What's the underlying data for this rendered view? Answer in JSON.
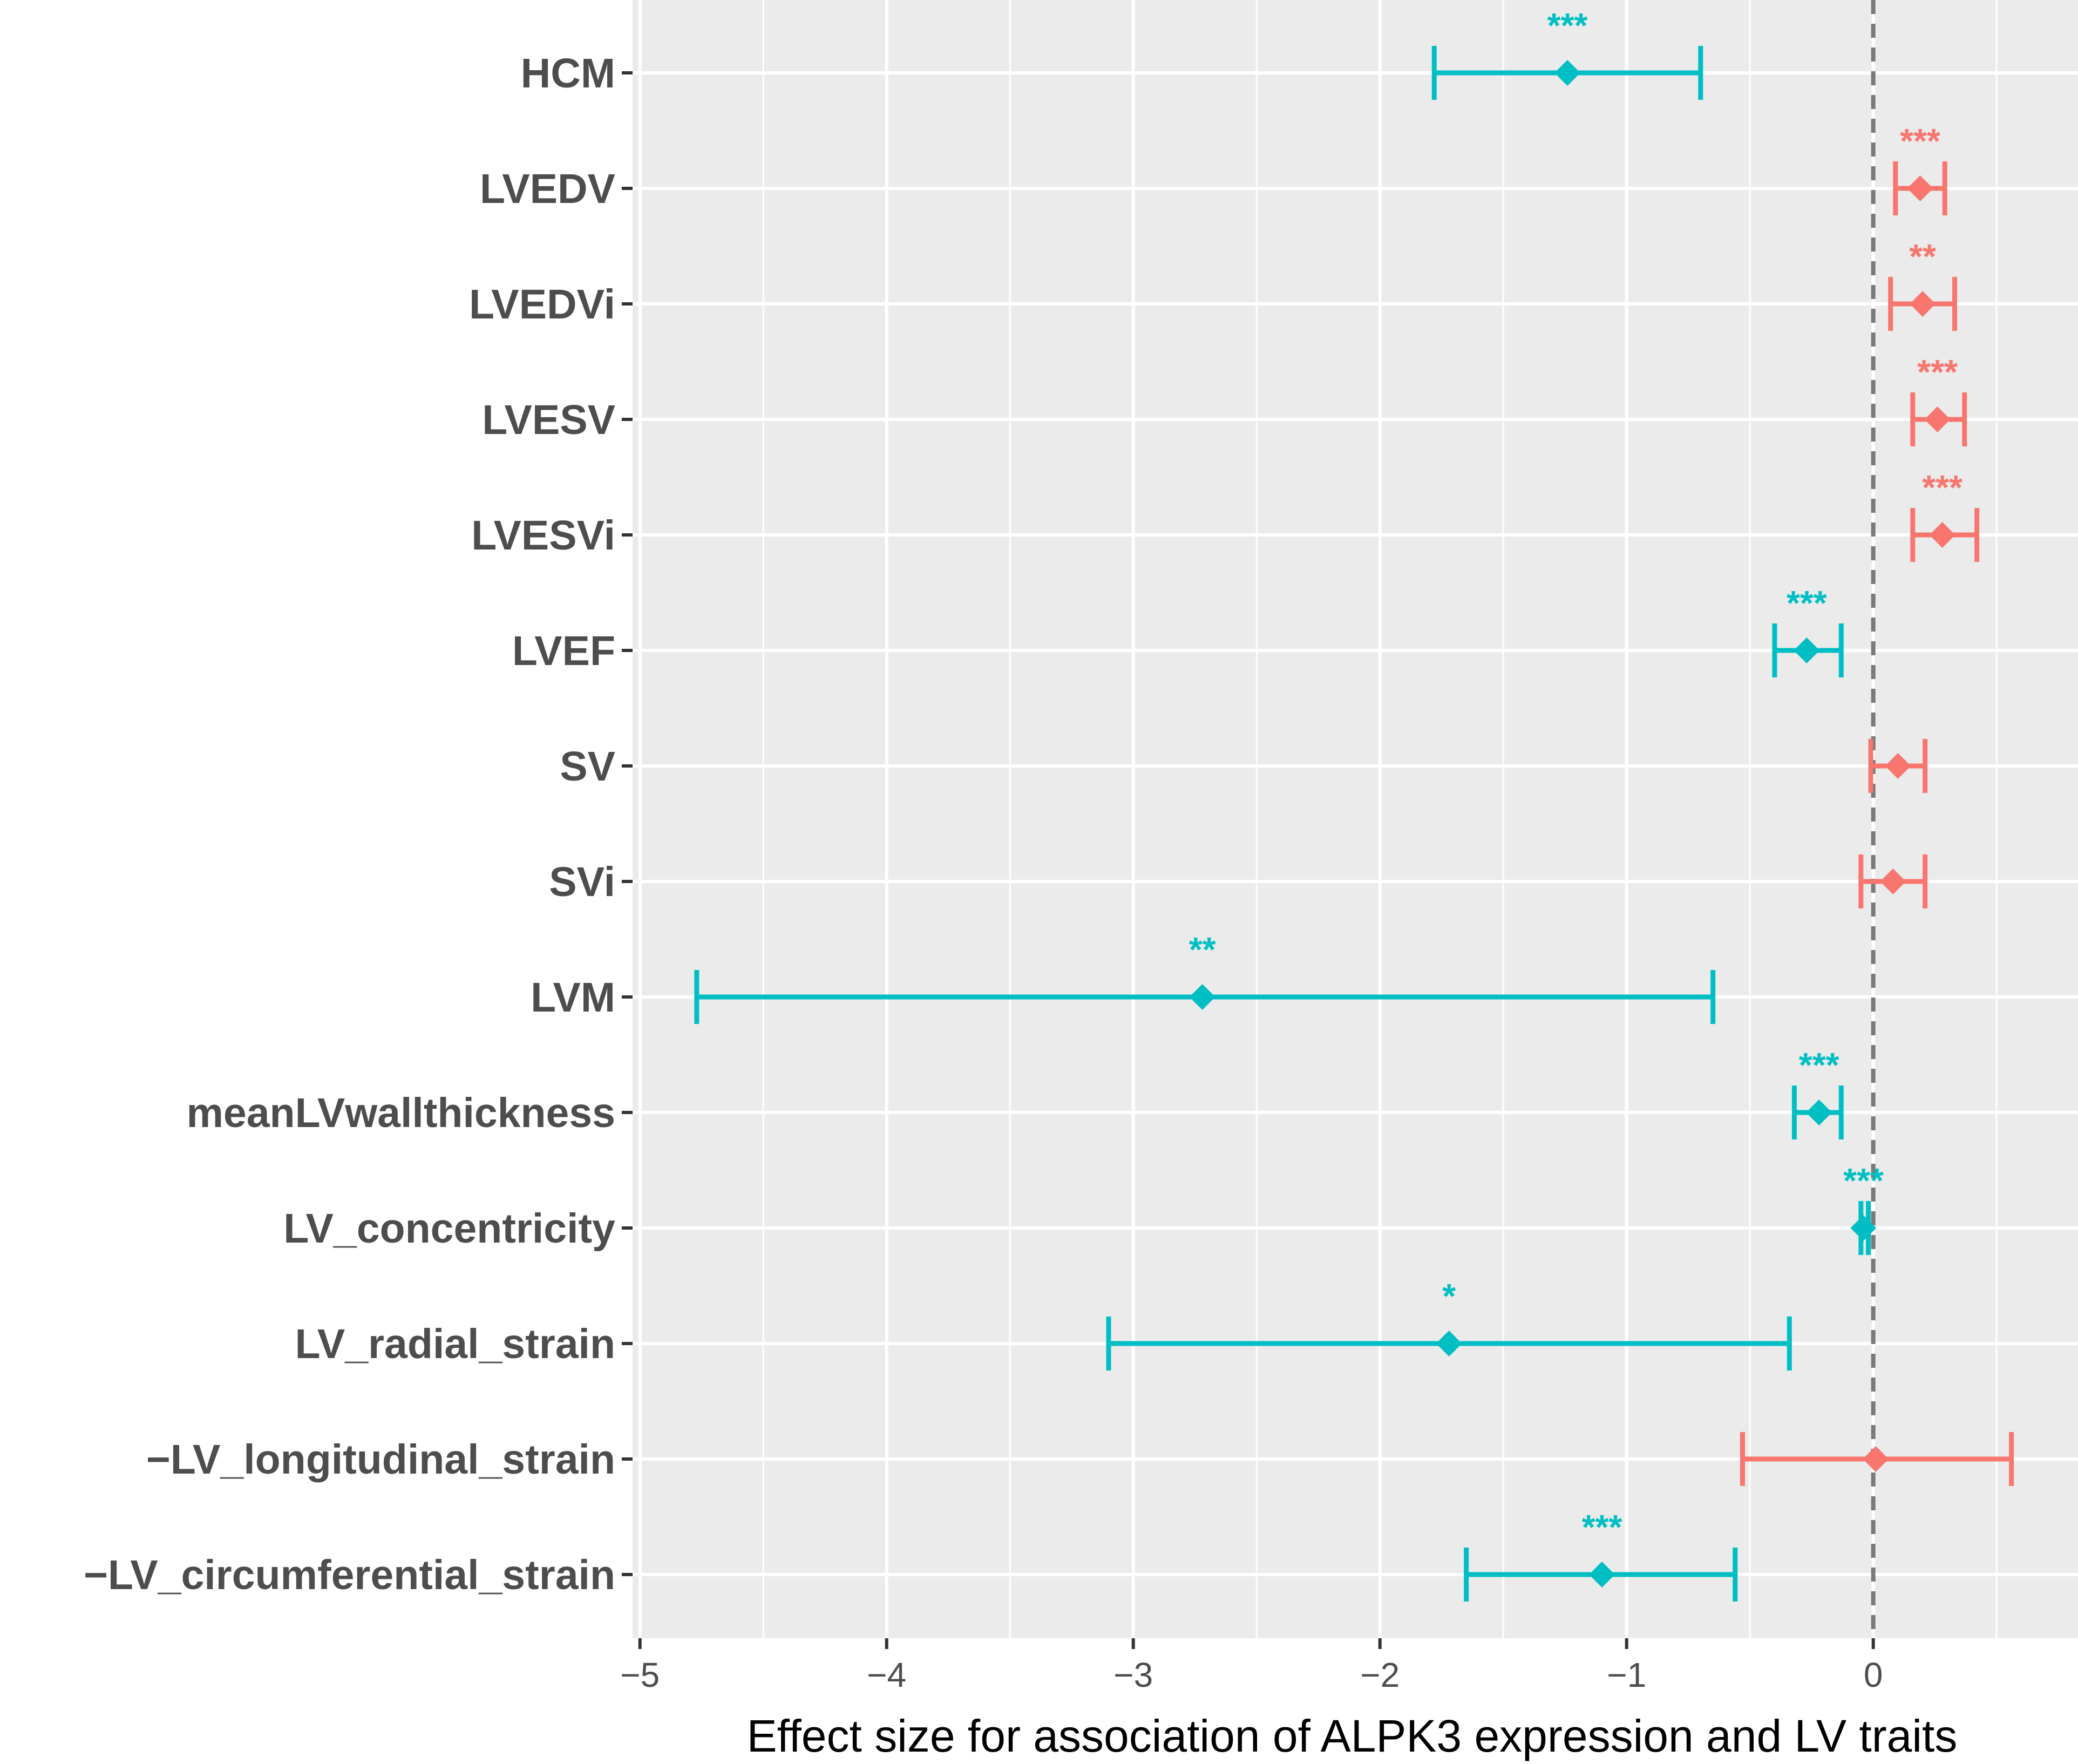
{
  "chart_data": {
    "type": "forest",
    "xlabel": "Effect size for association of ALPK3 expression and LV traits",
    "xlim": [
      -5.03,
      0.83
    ],
    "xticks": [
      -5,
      -4,
      -3,
      -2,
      -1,
      0
    ],
    "xtick_labels": [
      "−5",
      "−4",
      "−3",
      "−2",
      "−1",
      "0"
    ],
    "reference_line": 0,
    "colors": {
      "negative": "#00bfc4",
      "positive": "#f8766d"
    },
    "traits": [
      {
        "label": "HCM",
        "estimate": -1.24,
        "lower": -1.78,
        "upper": -0.7,
        "sig": "***",
        "direction": "negative"
      },
      {
        "label": "LVEDV",
        "estimate": 0.19,
        "lower": 0.09,
        "upper": 0.29,
        "sig": "***",
        "direction": "positive"
      },
      {
        "label": "LVEDVi",
        "estimate": 0.2,
        "lower": 0.07,
        "upper": 0.33,
        "sig": "**",
        "direction": "positive"
      },
      {
        "label": "LVESV",
        "estimate": 0.26,
        "lower": 0.16,
        "upper": 0.37,
        "sig": "***",
        "direction": "positive"
      },
      {
        "label": "LVESVi",
        "estimate": 0.28,
        "lower": 0.16,
        "upper": 0.42,
        "sig": "***",
        "direction": "positive"
      },
      {
        "label": "LVEF",
        "estimate": -0.27,
        "lower": -0.4,
        "upper": -0.13,
        "sig": "***",
        "direction": "negative"
      },
      {
        "label": "SV",
        "estimate": 0.1,
        "lower": -0.01,
        "upper": 0.21,
        "sig": "",
        "direction": "positive"
      },
      {
        "label": "SVi",
        "estimate": 0.08,
        "lower": -0.05,
        "upper": 0.21,
        "sig": "",
        "direction": "positive"
      },
      {
        "label": "LVM",
        "estimate": -2.72,
        "lower": -4.77,
        "upper": -0.65,
        "sig": "**",
        "direction": "negative"
      },
      {
        "label": "meanLVwallthickness",
        "estimate": -0.22,
        "lower": -0.32,
        "upper": -0.13,
        "sig": "***",
        "direction": "negative"
      },
      {
        "label": "LV_concentricity",
        "estimate": -0.04,
        "lower": -0.05,
        "upper": -0.02,
        "sig": "***",
        "direction": "negative"
      },
      {
        "label": "LV_radial_strain",
        "estimate": -1.72,
        "lower": -3.1,
        "upper": -0.34,
        "sig": "*",
        "direction": "negative"
      },
      {
        "label": "−LV_longitudinal_strain",
        "estimate": 0.01,
        "lower": -0.53,
        "upper": 0.56,
        "sig": "",
        "direction": "positive"
      },
      {
        "label": "−LV_circumferential_strain",
        "estimate": -1.1,
        "lower": -1.65,
        "upper": -0.56,
        "sig": "***",
        "direction": "negative"
      }
    ]
  }
}
